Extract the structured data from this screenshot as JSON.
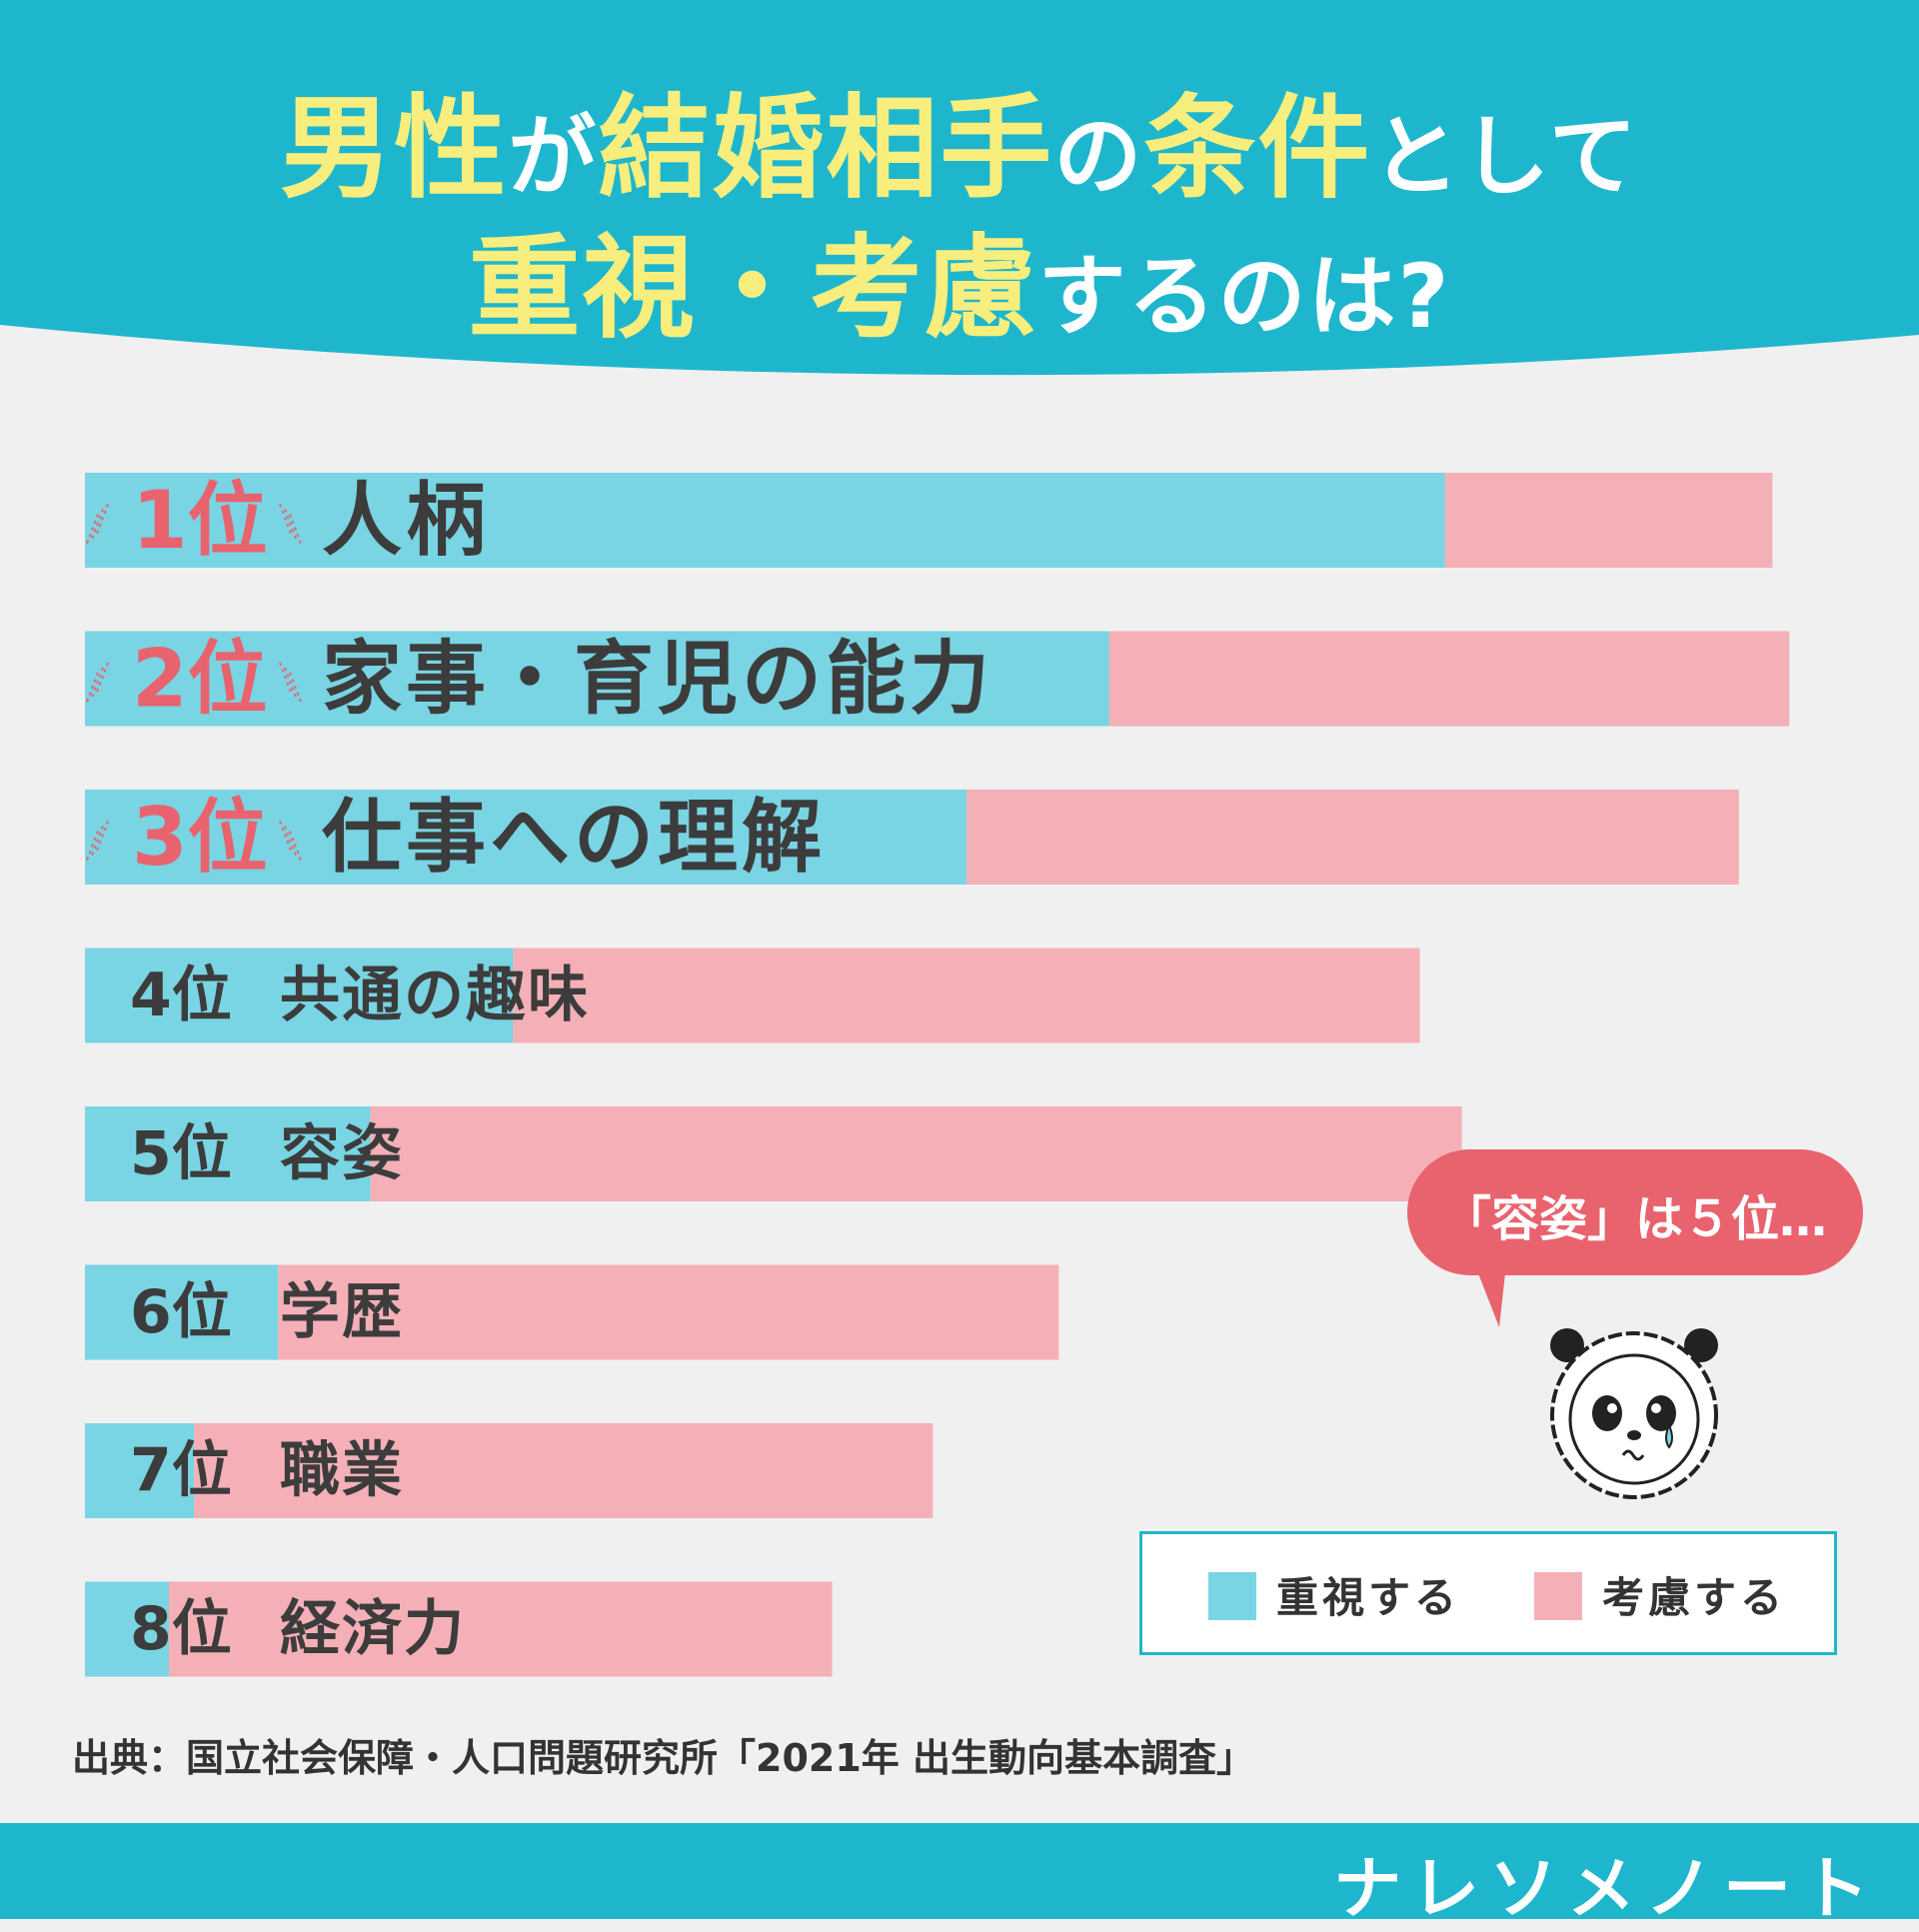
{
  "title": {
    "line1": [
      {
        "text": "男性",
        "hl": true
      },
      {
        "text": "が",
        "hl": false
      },
      {
        "text": "結婚相手",
        "hl": true
      },
      {
        "text": "の",
        "hl": false
      },
      {
        "text": "条件",
        "hl": true
      },
      {
        "text": "として",
        "hl": false
      }
    ],
    "line2": [
      {
        "text": "重視・考慮",
        "hl": true
      },
      {
        "text": "するのは?",
        "hl": false
      }
    ]
  },
  "chart_data": {
    "type": "bar",
    "orientation": "horizontal",
    "stacked": true,
    "categories": [
      "人柄",
      "家事・育児の能力",
      "仕事への理解",
      "共通の趣味",
      "容姿",
      "学歴",
      "職業",
      "経済力"
    ],
    "ranks": [
      "1位",
      "2位",
      "3位",
      "4位",
      "5位",
      "6位",
      "7位",
      "8位"
    ],
    "series": [
      {
        "name": "重視する",
        "values": [
          81,
          61,
          52.5,
          25.5,
          17,
          11.5,
          6.5,
          5
        ]
      },
      {
        "name": "考慮する",
        "values": [
          19.5,
          40.5,
          46,
          54,
          65,
          46.5,
          44,
          39.5
        ]
      }
    ],
    "colors": [
      "#79d4e3",
      "#f5b0b7"
    ],
    "rank_color_top": "#e8636e",
    "label_color": "#3c3c3c",
    "legend_position": "bottom-right"
  },
  "legend": {
    "items": [
      {
        "label": "重視する"
      },
      {
        "label": "考慮する"
      }
    ]
  },
  "bubble": {
    "text": "「容姿」は５位…"
  },
  "caption": "出典：国立社会保障・人口問題研究所「2021年 出生動向基本調査」",
  "brand": "ナレソメノート",
  "colors": {
    "header": "#1eb6cd",
    "highlight": "#f7ee7d",
    "bubble": "#e8636e"
  }
}
